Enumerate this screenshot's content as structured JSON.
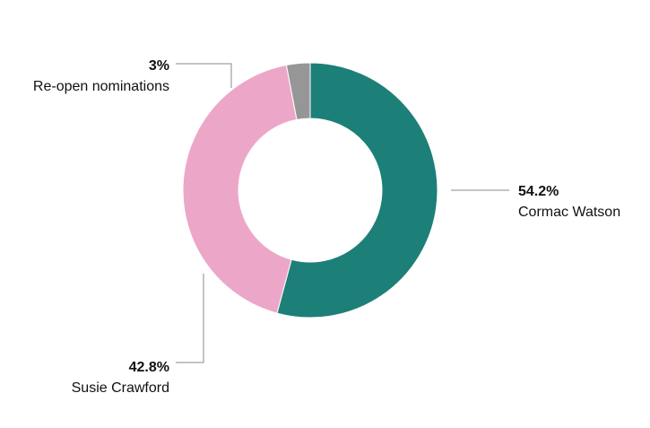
{
  "chart_data": {
    "type": "pie",
    "variant": "donut",
    "title": "",
    "slices": [
      {
        "label": "Cormac Watson",
        "value": 54.2,
        "value_label": "54.2%",
        "color": "#1c7f78"
      },
      {
        "label": "Susie Crawford",
        "value": 42.8,
        "value_label": "42.8%",
        "color": "#eca7c8"
      },
      {
        "label": "Re-open nominations",
        "value": 3,
        "value_label": "3%",
        "color": "#969696"
      }
    ],
    "start": "top, clockwise",
    "legend": "none"
  }
}
